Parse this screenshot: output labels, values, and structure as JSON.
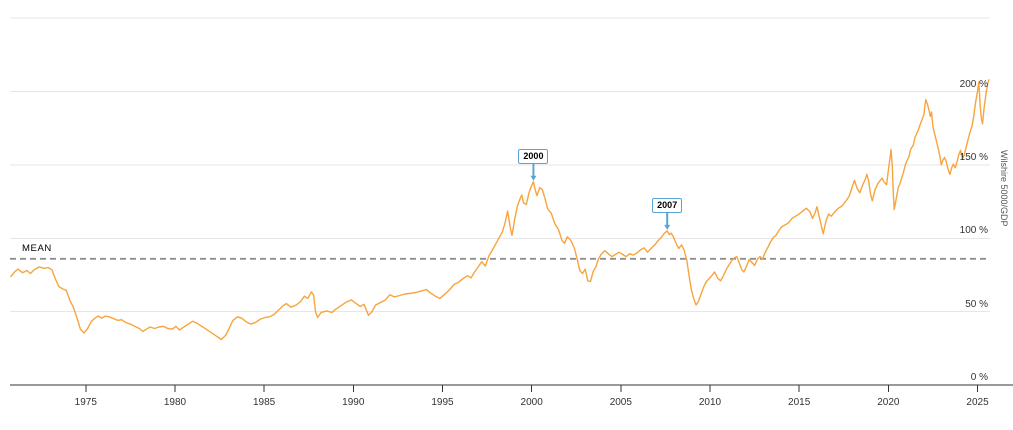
{
  "colors": {
    "series": "#f8a43c",
    "grid": "#e6e6e6",
    "axis": "#333333",
    "tick_label": "#333333",
    "mean_line": "#8f8f8f",
    "annotation": "#58a4d8",
    "background": "#ffffff"
  },
  "chart_data": {
    "type": "line",
    "title": "",
    "xlabel": "",
    "ylabel": "Wilshire 5000/GDP",
    "series_name": "Wilshire 5000/GDP",
    "legend": "none",
    "grid": true,
    "xlim": [
      1970.75,
      2025.7
    ],
    "ylim": [
      0,
      262
    ],
    "x_ticks": [
      1975,
      1980,
      1985,
      1990,
      1995,
      2000,
      2005,
      2010,
      2015,
      2020,
      2025
    ],
    "y_ticks": [
      {
        "value": 0,
        "label": "0 %"
      },
      {
        "value": 50,
        "label": "50 %"
      },
      {
        "value": 100,
        "label": "100 %"
      },
      {
        "value": 150,
        "label": "150 %"
      },
      {
        "value": 200,
        "label": "200 %"
      },
      {
        "value": 250,
        "label": ""
      }
    ],
    "mean": {
      "label": "MEAN",
      "value": 86
    },
    "annotations": [
      {
        "label": "2000",
        "year": 2000.1,
        "value": 138.5
      },
      {
        "label": "2007",
        "year": 2007.6,
        "value": 105
      }
    ],
    "points": [
      [
        1970.8,
        74
      ],
      [
        1971.0,
        77
      ],
      [
        1971.2,
        79
      ],
      [
        1971.45,
        76.5
      ],
      [
        1971.7,
        78
      ],
      [
        1971.9,
        76
      ],
      [
        1972.1,
        78.5
      ],
      [
        1972.4,
        80.5
      ],
      [
        1972.65,
        79.5
      ],
      [
        1972.9,
        80
      ],
      [
        1973.1,
        78.5
      ],
      [
        1973.3,
        72
      ],
      [
        1973.5,
        67
      ],
      [
        1973.7,
        65.5
      ],
      [
        1973.9,
        64.5
      ],
      [
        1974.1,
        58
      ],
      [
        1974.3,
        53
      ],
      [
        1974.5,
        46
      ],
      [
        1974.7,
        38
      ],
      [
        1974.9,
        35.5
      ],
      [
        1975.1,
        38.5
      ],
      [
        1975.3,
        43
      ],
      [
        1975.5,
        45.5
      ],
      [
        1975.7,
        47
      ],
      [
        1975.9,
        45.5
      ],
      [
        1976.1,
        47
      ],
      [
        1976.3,
        46.5
      ],
      [
        1976.5,
        45.5
      ],
      [
        1976.8,
        44
      ],
      [
        1977.0,
        44.5
      ],
      [
        1977.25,
        42.5
      ],
      [
        1977.5,
        41.5
      ],
      [
        1977.75,
        40
      ],
      [
        1978.0,
        38.5
      ],
      [
        1978.2,
        36.5
      ],
      [
        1978.4,
        38
      ],
      [
        1978.6,
        39.5
      ],
      [
        1978.85,
        38.5
      ],
      [
        1979.1,
        39.5
      ],
      [
        1979.35,
        40
      ],
      [
        1979.6,
        38.5
      ],
      [
        1979.85,
        38
      ],
      [
        1980.05,
        40
      ],
      [
        1980.25,
        37.5
      ],
      [
        1980.5,
        39.5
      ],
      [
        1980.75,
        41.5
      ],
      [
        1981.0,
        43.5
      ],
      [
        1981.25,
        42
      ],
      [
        1981.5,
        40
      ],
      [
        1981.75,
        38
      ],
      [
        1982.0,
        36
      ],
      [
        1982.3,
        33.5
      ],
      [
        1982.6,
        31
      ],
      [
        1982.85,
        34
      ],
      [
        1983.05,
        39
      ],
      [
        1983.25,
        44
      ],
      [
        1983.5,
        46.5
      ],
      [
        1983.75,
        45.5
      ],
      [
        1984.0,
        43
      ],
      [
        1984.25,
        41.5
      ],
      [
        1984.5,
        42.5
      ],
      [
        1984.8,
        45
      ],
      [
        1985.05,
        46
      ],
      [
        1985.3,
        46.5
      ],
      [
        1985.55,
        48
      ],
      [
        1985.8,
        51
      ],
      [
        1986.05,
        54
      ],
      [
        1986.25,
        55.5
      ],
      [
        1986.5,
        53
      ],
      [
        1986.8,
        54.5
      ],
      [
        1987.05,
        57
      ],
      [
        1987.25,
        60.5
      ],
      [
        1987.45,
        59
      ],
      [
        1987.65,
        63.5
      ],
      [
        1987.78,
        61
      ],
      [
        1987.88,
        50
      ],
      [
        1988.0,
        46
      ],
      [
        1988.2,
        49.5
      ],
      [
        1988.5,
        50.5
      ],
      [
        1988.8,
        49.5
      ],
      [
        1989.0,
        51.5
      ],
      [
        1989.3,
        54
      ],
      [
        1989.6,
        56.5
      ],
      [
        1989.9,
        58
      ],
      [
        1990.1,
        56
      ],
      [
        1990.4,
        53.5
      ],
      [
        1990.6,
        55
      ],
      [
        1990.85,
        47.5
      ],
      [
        1991.05,
        50
      ],
      [
        1991.25,
        54.5
      ],
      [
        1991.5,
        56
      ],
      [
        1991.8,
        58
      ],
      [
        1992.05,
        61.5
      ],
      [
        1992.3,
        60
      ],
      [
        1992.6,
        61
      ],
      [
        1992.9,
        62
      ],
      [
        1993.2,
        62.5
      ],
      [
        1993.5,
        63
      ],
      [
        1993.8,
        64
      ],
      [
        1994.1,
        65
      ],
      [
        1994.35,
        62.5
      ],
      [
        1994.6,
        60.5
      ],
      [
        1994.85,
        59
      ],
      [
        1995.1,
        61.5
      ],
      [
        1995.4,
        65
      ],
      [
        1995.65,
        68.5
      ],
      [
        1995.9,
        70
      ],
      [
        1996.15,
        72.5
      ],
      [
        1996.4,
        74.5
      ],
      [
        1996.6,
        73
      ],
      [
        1996.8,
        77
      ],
      [
        1997.0,
        80.5
      ],
      [
        1997.2,
        84
      ],
      [
        1997.4,
        81
      ],
      [
        1997.6,
        88
      ],
      [
        1997.8,
        92
      ],
      [
        1998.0,
        96.5
      ],
      [
        1998.2,
        101
      ],
      [
        1998.35,
        104
      ],
      [
        1998.5,
        110
      ],
      [
        1998.65,
        118.5
      ],
      [
        1998.8,
        107
      ],
      [
        1998.9,
        102
      ],
      [
        1999.05,
        113
      ],
      [
        1999.2,
        122
      ],
      [
        1999.35,
        127
      ],
      [
        1999.45,
        129.5
      ],
      [
        1999.55,
        124
      ],
      [
        1999.7,
        123
      ],
      [
        1999.85,
        131
      ],
      [
        2000.0,
        136
      ],
      [
        2000.1,
        138.5
      ],
      [
        2000.2,
        133
      ],
      [
        2000.3,
        129
      ],
      [
        2000.45,
        134.5
      ],
      [
        2000.6,
        133
      ],
      [
        2000.75,
        127
      ],
      [
        2000.9,
        120
      ],
      [
        2001.1,
        117
      ],
      [
        2001.3,
        110
      ],
      [
        2001.5,
        106
      ],
      [
        2001.7,
        98.5
      ],
      [
        2001.85,
        96.5
      ],
      [
        2002.0,
        101
      ],
      [
        2002.2,
        98.5
      ],
      [
        2002.4,
        93
      ],
      [
        2002.55,
        86
      ],
      [
        2002.7,
        78
      ],
      [
        2002.85,
        76
      ],
      [
        2003.0,
        79
      ],
      [
        2003.15,
        71
      ],
      [
        2003.3,
        70.5
      ],
      [
        2003.45,
        77.5
      ],
      [
        2003.6,
        80.5
      ],
      [
        2003.75,
        86
      ],
      [
        2003.9,
        89
      ],
      [
        2004.1,
        91.5
      ],
      [
        2004.3,
        89.5
      ],
      [
        2004.5,
        87.5
      ],
      [
        2004.7,
        89
      ],
      [
        2004.9,
        90.5
      ],
      [
        2005.1,
        89
      ],
      [
        2005.3,
        87.5
      ],
      [
        2005.5,
        89.5
      ],
      [
        2005.7,
        88.5
      ],
      [
        2005.9,
        90
      ],
      [
        2006.1,
        92
      ],
      [
        2006.3,
        93.5
      ],
      [
        2006.5,
        90.5
      ],
      [
        2006.7,
        93
      ],
      [
        2006.9,
        95.5
      ],
      [
        2007.1,
        98.5
      ],
      [
        2007.3,
        101
      ],
      [
        2007.45,
        103.5
      ],
      [
        2007.6,
        105
      ],
      [
        2007.72,
        102.5
      ],
      [
        2007.82,
        103.5
      ],
      [
        2007.95,
        101
      ],
      [
        2008.1,
        96.5
      ],
      [
        2008.25,
        93
      ],
      [
        2008.4,
        95.5
      ],
      [
        2008.55,
        92
      ],
      [
        2008.7,
        85
      ],
      [
        2008.82,
        75
      ],
      [
        2008.95,
        65
      ],
      [
        2009.1,
        58.5
      ],
      [
        2009.22,
        54.5
      ],
      [
        2009.35,
        57
      ],
      [
        2009.5,
        62
      ],
      [
        2009.65,
        67
      ],
      [
        2009.8,
        70.5
      ],
      [
        2009.95,
        72.5
      ],
      [
        2010.1,
        74.5
      ],
      [
        2010.25,
        77
      ],
      [
        2010.45,
        72.5
      ],
      [
        2010.6,
        71
      ],
      [
        2010.75,
        74.5
      ],
      [
        2010.9,
        78.5
      ],
      [
        2011.05,
        81.5
      ],
      [
        2011.2,
        84.5
      ],
      [
        2011.35,
        86.5
      ],
      [
        2011.5,
        87.5
      ],
      [
        2011.65,
        83
      ],
      [
        2011.78,
        78.5
      ],
      [
        2011.9,
        77
      ],
      [
        2012.05,
        81
      ],
      [
        2012.2,
        85.5
      ],
      [
        2012.35,
        83.5
      ],
      [
        2012.5,
        81.5
      ],
      [
        2012.65,
        85.5
      ],
      [
        2012.8,
        87.5
      ],
      [
        2012.95,
        86
      ],
      [
        2013.1,
        90.5
      ],
      [
        2013.25,
        94
      ],
      [
        2013.4,
        97.5
      ],
      [
        2013.55,
        100.5
      ],
      [
        2013.7,
        102
      ],
      [
        2013.85,
        105
      ],
      [
        2014.0,
        107.5
      ],
      [
        2014.2,
        109
      ],
      [
        2014.4,
        110.5
      ],
      [
        2014.6,
        113.5
      ],
      [
        2014.8,
        115
      ],
      [
        2015.0,
        116.5
      ],
      [
        2015.2,
        118.5
      ],
      [
        2015.4,
        120.5
      ],
      [
        2015.6,
        118
      ],
      [
        2015.75,
        113.5
      ],
      [
        2015.9,
        117.5
      ],
      [
        2016.0,
        121.5
      ],
      [
        2016.1,
        116
      ],
      [
        2016.25,
        108
      ],
      [
        2016.35,
        103
      ],
      [
        2016.5,
        111.5
      ],
      [
        2016.65,
        116.5
      ],
      [
        2016.8,
        115
      ],
      [
        2017.0,
        118
      ],
      [
        2017.2,
        120.5
      ],
      [
        2017.4,
        122
      ],
      [
        2017.6,
        125
      ],
      [
        2017.8,
        128.5
      ],
      [
        2018.0,
        136
      ],
      [
        2018.1,
        139.5
      ],
      [
        2018.25,
        134
      ],
      [
        2018.4,
        131
      ],
      [
        2018.55,
        136
      ],
      [
        2018.7,
        140
      ],
      [
        2018.8,
        143.5
      ],
      [
        2018.9,
        139
      ],
      [
        2019.0,
        130
      ],
      [
        2019.1,
        125.5
      ],
      [
        2019.25,
        133
      ],
      [
        2019.4,
        137
      ],
      [
        2019.55,
        139.5
      ],
      [
        2019.65,
        141
      ],
      [
        2019.75,
        138.5
      ],
      [
        2019.9,
        136.5
      ],
      [
        2020.0,
        146
      ],
      [
        2020.1,
        155
      ],
      [
        2020.15,
        160.5
      ],
      [
        2020.22,
        149
      ],
      [
        2020.28,
        131
      ],
      [
        2020.33,
        119.5
      ],
      [
        2020.45,
        127.5
      ],
      [
        2020.55,
        134.5
      ],
      [
        2020.65,
        137
      ],
      [
        2020.75,
        141
      ],
      [
        2020.85,
        145
      ],
      [
        2020.95,
        150
      ],
      [
        2021.05,
        153
      ],
      [
        2021.15,
        155.5
      ],
      [
        2021.25,
        160.5
      ],
      [
        2021.4,
        163.5
      ],
      [
        2021.5,
        169
      ],
      [
        2021.6,
        171.5
      ],
      [
        2021.7,
        174.5
      ],
      [
        2021.8,
        178
      ],
      [
        2021.9,
        181
      ],
      [
        2022.0,
        184.5
      ],
      [
        2022.05,
        190.5
      ],
      [
        2022.1,
        194.5
      ],
      [
        2022.2,
        191
      ],
      [
        2022.3,
        186
      ],
      [
        2022.35,
        183
      ],
      [
        2022.42,
        186
      ],
      [
        2022.5,
        176
      ],
      [
        2022.6,
        171
      ],
      [
        2022.7,
        166
      ],
      [
        2022.8,
        161
      ],
      [
        2022.9,
        155
      ],
      [
        2022.97,
        150
      ],
      [
        2023.05,
        153
      ],
      [
        2023.15,
        155
      ],
      [
        2023.25,
        152
      ],
      [
        2023.35,
        147
      ],
      [
        2023.45,
        143.5
      ],
      [
        2023.55,
        148
      ],
      [
        2023.65,
        150.5
      ],
      [
        2023.75,
        148
      ],
      [
        2023.85,
        152
      ],
      [
        2023.95,
        157
      ],
      [
        2024.05,
        160
      ],
      [
        2024.15,
        154
      ],
      [
        2024.25,
        156.5
      ],
      [
        2024.4,
        164
      ],
      [
        2024.55,
        171
      ],
      [
        2024.7,
        177
      ],
      [
        2024.8,
        184
      ],
      [
        2024.9,
        193
      ],
      [
        2025.0,
        200
      ],
      [
        2025.07,
        206.5
      ],
      [
        2025.15,
        190
      ],
      [
        2025.22,
        181.5
      ],
      [
        2025.28,
        178
      ],
      [
        2025.38,
        190
      ],
      [
        2025.48,
        199
      ],
      [
        2025.58,
        206
      ],
      [
        2025.63,
        208
      ]
    ]
  }
}
